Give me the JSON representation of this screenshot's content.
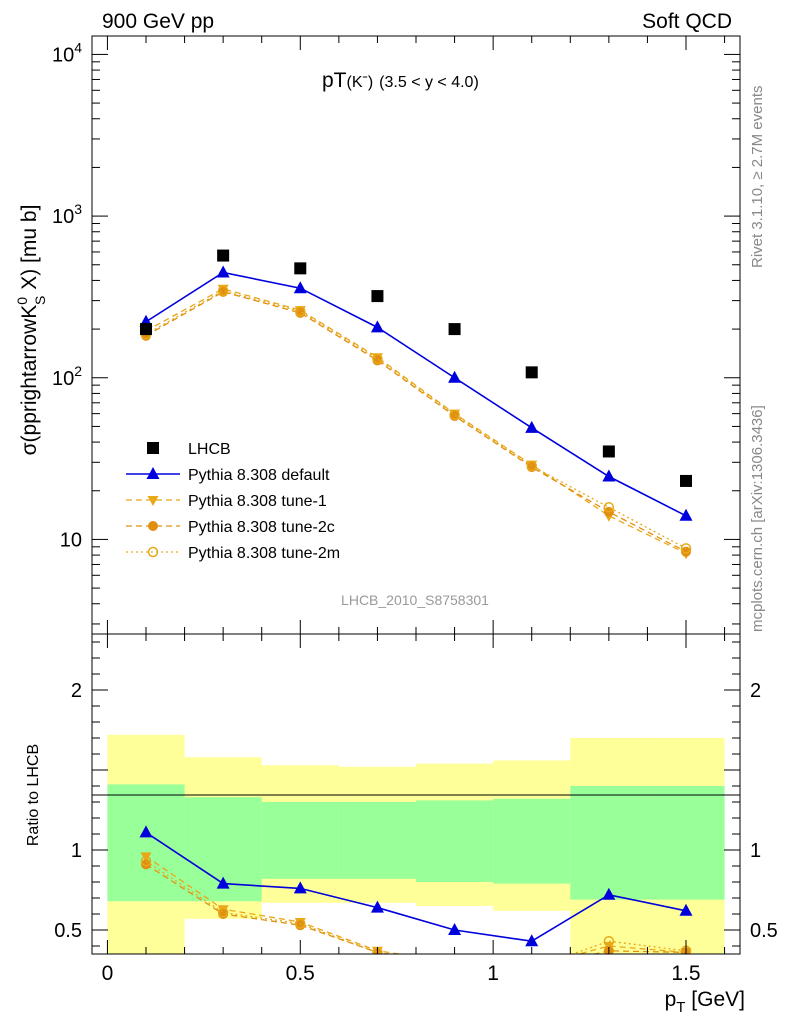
{
  "header": {
    "left": "900 GeV pp",
    "right": "Soft QCD"
  },
  "side_labels": {
    "rivet": "Rivet 3.1.10, ≥ 2.7M events",
    "mcplots": "mcplots.cern.ch [arXiv:1306.3436]"
  },
  "main_plot": {
    "title_main": "pT",
    "title_sub": "(Kˉ)",
    "title_range": "(3.5 < y < 4.0)",
    "ylabel": "σ(pprightarrowK",
    "ylabel_sup": "0",
    "ylabel_sub": "S",
    "ylabel_tail": " X) [mu b]",
    "watermark": "LHCB_2010_S8758301"
  },
  "ratio_plot": {
    "ylabel": "Ratio to LHCB"
  },
  "xaxis": {
    "label_main": "p",
    "label_sub": "T",
    "label_tail": " [GeV]"
  },
  "legend": [
    {
      "label": "LHCB",
      "color": "#000000",
      "marker": "square",
      "line": "none"
    },
    {
      "label": "Pythia 8.308 default",
      "color": "#0000dd",
      "marker": "triangle-up",
      "line": "solid"
    },
    {
      "label": "Pythia 8.308 tune-1",
      "color": "#e8a818",
      "marker": "triangle-down",
      "line": "dash"
    },
    {
      "label": "Pythia 8.308 tune-2c",
      "color": "#e09010",
      "marker": "circle",
      "line": "dash"
    },
    {
      "label": "Pythia 8.308 tune-2m",
      "color": "#e8a818",
      "marker": "circle-open",
      "line": "dot"
    }
  ],
  "chart_data": {
    "type": "scatter",
    "x": [
      0.1,
      0.3,
      0.5,
      0.7,
      0.9,
      1.1,
      1.3,
      1.5
    ],
    "bin_edges": [
      0.0,
      0.2,
      0.4,
      0.6,
      0.8,
      1.0,
      1.2,
      1.4,
      1.6
    ],
    "xlim": [
      -0.04,
      1.64
    ],
    "ylim_main": [
      2.6,
      13000
    ],
    "yscale_main": "log",
    "ylim_ratio": [
      0.35,
      2.35
    ],
    "main_yticks": [
      "10",
      "10^2",
      "10^3",
      "10^4"
    ],
    "ratio_yticks": [
      "0.5",
      "1",
      "2"
    ],
    "xticks": [
      "0",
      "0.5",
      "1",
      "1.5"
    ],
    "series": [
      {
        "name": "LHCB",
        "values": [
          200,
          570,
          475,
          320,
          200,
          108,
          35,
          23
        ]
      },
      {
        "name": "Pythia 8.308 default",
        "values": [
          222,
          448,
          358,
          205,
          100,
          49,
          24.5,
          14
        ]
      },
      {
        "name": "Pythia 8.308 tune-1",
        "values": [
          195,
          355,
          262,
          134,
          60,
          29,
          14,
          8.2
        ]
      },
      {
        "name": "Pythia 8.308 tune-2c",
        "values": [
          182,
          340,
          252,
          128,
          58,
          28,
          14.8,
          8.4
        ]
      },
      {
        "name": "Pythia 8.308 tune-2m",
        "values": [
          186,
          345,
          258,
          131,
          59,
          28.5,
          15.8,
          8.8
        ]
      }
    ],
    "ratio_series": [
      {
        "name": "Pythia 8.308 default",
        "values": [
          1.11,
          0.79,
          0.76,
          0.64,
          0.5,
          0.43,
          0.72,
          0.62
        ]
      },
      {
        "name": "Pythia 8.308 tune-1",
        "values": [
          0.96,
          0.63,
          0.55,
          0.37,
          0.3,
          0.27,
          0.4,
          0.36
        ]
      },
      {
        "name": "Pythia 8.308 tune-2c",
        "values": [
          0.91,
          0.6,
          0.53,
          0.36,
          0.29,
          0.26,
          0.37,
          0.36
        ]
      },
      {
        "name": "Pythia 8.308 tune-2m",
        "values": [
          0.93,
          0.61,
          0.54,
          0.36,
          0.29,
          0.26,
          0.43,
          0.37
        ]
      }
    ],
    "ratio_band_inner": [
      {
        "lo": 0.68,
        "hi": 1.41
      },
      {
        "lo": 0.68,
        "hi": 1.33
      },
      {
        "lo": 0.82,
        "hi": 1.3
      },
      {
        "lo": 0.82,
        "hi": 1.3
      },
      {
        "lo": 0.8,
        "hi": 1.31
      },
      {
        "lo": 0.79,
        "hi": 1.32
      },
      {
        "lo": 0.69,
        "hi": 1.4
      },
      {
        "lo": 0.69,
        "hi": 1.4
      }
    ],
    "ratio_band_outer": [
      {
        "lo": 0.35,
        "hi": 1.72
      },
      {
        "lo": 0.57,
        "hi": 1.58
      },
      {
        "lo": 0.67,
        "hi": 1.53
      },
      {
        "lo": 0.67,
        "hi": 1.52
      },
      {
        "lo": 0.65,
        "hi": 1.54
      },
      {
        "lo": 0.62,
        "hi": 1.56
      },
      {
        "lo": 0.35,
        "hi": 1.7
      },
      {
        "lo": 0.35,
        "hi": 1.7
      }
    ]
  }
}
